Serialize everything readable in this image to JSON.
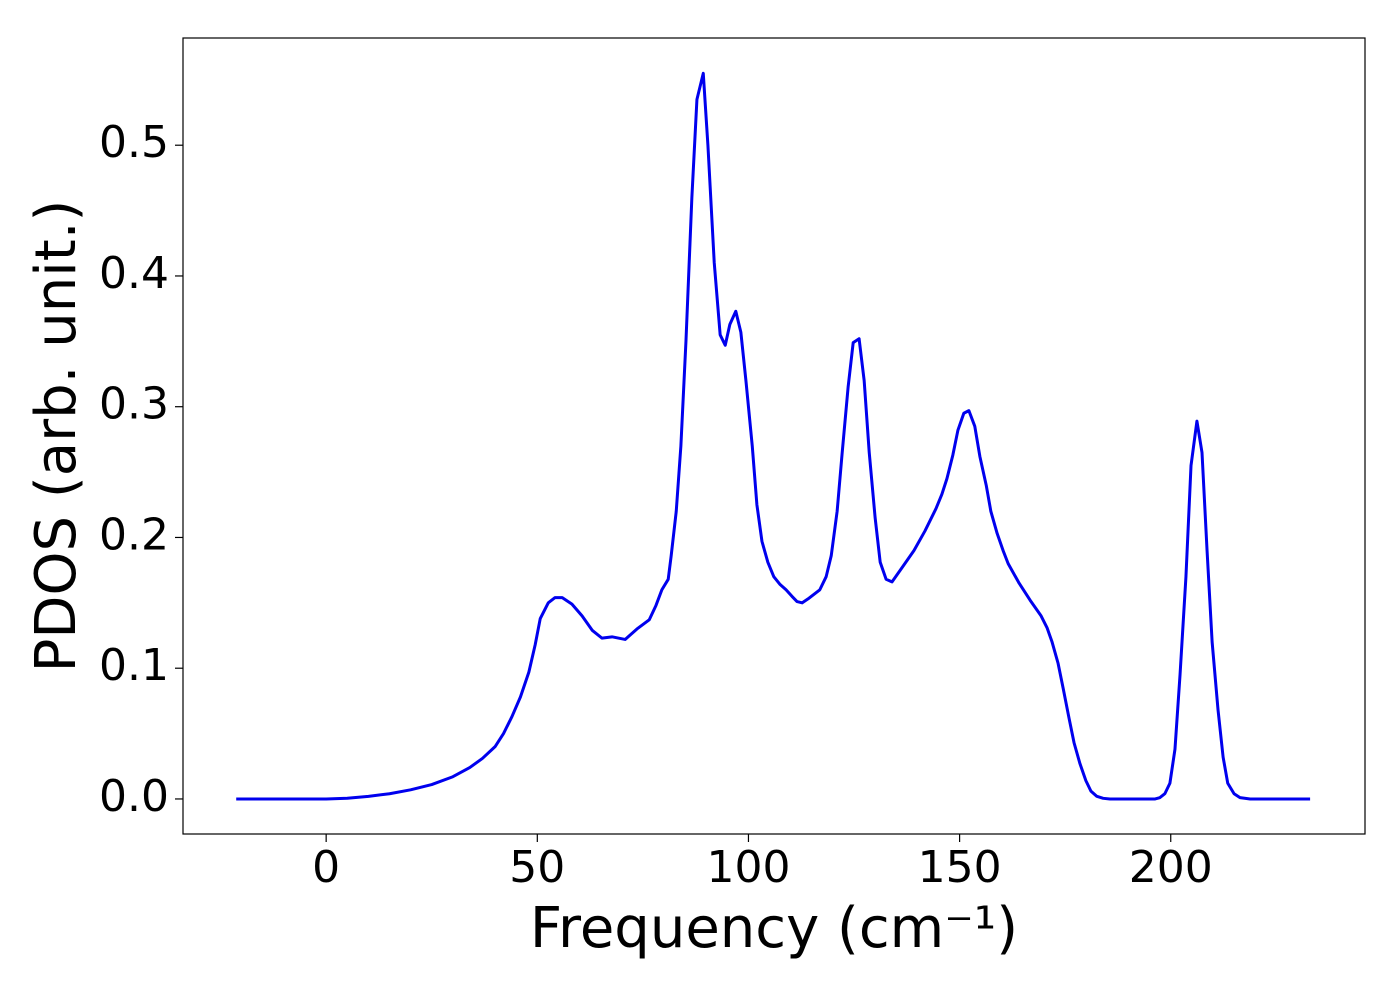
{
  "chart_data": {
    "type": "line",
    "xlabel": "Frequency (cm⁻¹)",
    "ylabel": "PDOS (arb. unit.)",
    "xlim": [
      -33.9,
      246
    ],
    "ylim": [
      -0.0268,
      0.582
    ],
    "xticks": [
      0,
      50,
      100,
      150,
      200
    ],
    "yticks": [
      {
        "value": 0,
        "label": "0.0"
      },
      0.1,
      0.2,
      0.3,
      0.4,
      0.5
    ],
    "series": [
      {
        "name": "PDOS",
        "color": "#0000ee",
        "x": [
          -21.3,
          0,
          5,
          10,
          15,
          20,
          25,
          30,
          34,
          37,
          40,
          42,
          44,
          46,
          48,
          49.5,
          50.7,
          52.6,
          54.2,
          55.9,
          58.2,
          60.6,
          63,
          65.3,
          67.7,
          70.8,
          73.6,
          76.5,
          78.1,
          79.5,
          81,
          81.7,
          82.9,
          84,
          85.2,
          86.6,
          87.8,
          89.3,
          90.4,
          91.9,
          93.3,
          94.5,
          95.6,
          97,
          98.2,
          99.4,
          100.9,
          102,
          103.2,
          104.6,
          106,
          107.5,
          108.9,
          110.3,
          111.5,
          112.7,
          114.1,
          116.9,
          118.4,
          119.6,
          121,
          122.2,
          123.6,
          124.8,
          126.2,
          127.4,
          128.6,
          130,
          131.2,
          132.6,
          134,
          136.6,
          139.2,
          141.8,
          144.4,
          145.8,
          147,
          148.4,
          149.6,
          151,
          152.2,
          153.6,
          154.8,
          156.3,
          157.4,
          158.9,
          160.3,
          161.5,
          164.1,
          166.7,
          169.3,
          170.7,
          171.9,
          173.3,
          174.5,
          175.9,
          177.1,
          178.5,
          179.9,
          181.1,
          182.5,
          184,
          185.6,
          196.3,
          197.4,
          198.6,
          199.8,
          201,
          202.2,
          203.6,
          204.8,
          206.2,
          207.4,
          208.6,
          209.8,
          211.2,
          212.4,
          213.5,
          215,
          216.4,
          218.8,
          233
        ],
        "values": [
          0,
          0,
          0.0005,
          0.002,
          0.004,
          0.007,
          0.011,
          0.017,
          0.024,
          0.031,
          0.04,
          0.05,
          0.063,
          0.078,
          0.097,
          0.118,
          0.138,
          0.15,
          0.154,
          0.154,
          0.149,
          0.14,
          0.129,
          0.123,
          0.124,
          0.122,
          0.13,
          0.137,
          0.148,
          0.16,
          0.168,
          0.186,
          0.22,
          0.27,
          0.35,
          0.46,
          0.535,
          0.555,
          0.5,
          0.41,
          0.355,
          0.347,
          0.363,
          0.373,
          0.357,
          0.32,
          0.27,
          0.225,
          0.197,
          0.181,
          0.17,
          0.164,
          0.16,
          0.155,
          0.151,
          0.15,
          0.153,
          0.16,
          0.17,
          0.186,
          0.22,
          0.265,
          0.315,
          0.349,
          0.352,
          0.32,
          0.265,
          0.215,
          0.181,
          0.168,
          0.166,
          0.178,
          0.19,
          0.205,
          0.222,
          0.233,
          0.245,
          0.263,
          0.282,
          0.295,
          0.297,
          0.285,
          0.262,
          0.24,
          0.22,
          0.203,
          0.19,
          0.18,
          0.165,
          0.152,
          0.14,
          0.131,
          0.12,
          0.104,
          0.085,
          0.062,
          0.043,
          0.027,
          0.014,
          0.006,
          0.002,
          0.0005,
          0,
          0,
          0.001,
          0.004,
          0.012,
          0.038,
          0.095,
          0.17,
          0.255,
          0.289,
          0.265,
          0.19,
          0.12,
          0.068,
          0.032,
          0.012,
          0.004,
          0.001,
          0,
          0
        ]
      }
    ]
  }
}
